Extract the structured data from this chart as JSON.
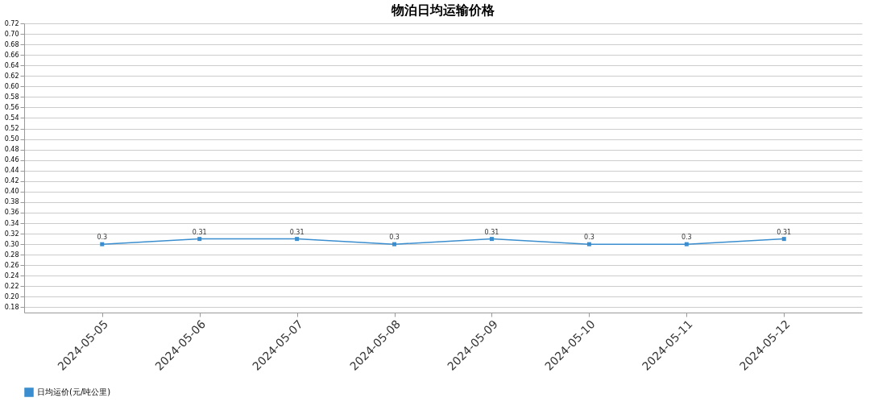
{
  "chart_data": {
    "type": "line",
    "title": "物泊日均运输价格",
    "categories": [
      "2024-05-05",
      "2024-05-06",
      "2024-05-07",
      "2024-05-08",
      "2024-05-09",
      "2024-05-10",
      "2024-05-11",
      "2024-05-12"
    ],
    "series": [
      {
        "name": "日均运价(元/吨公里)",
        "color": "#3a8ecf",
        "values": [
          0.3,
          0.31,
          0.31,
          0.3,
          0.31,
          0.3,
          0.3,
          0.31
        ]
      }
    ],
    "ylim": [
      0.17,
      0.72
    ],
    "yticks": [
      {
        "value": 0.18,
        "label": "0.18"
      },
      {
        "value": 0.2,
        "label": "0.20"
      },
      0.22,
      0.24,
      0.26,
      0.28,
      {
        "value": 0.3,
        "label": "0.30"
      },
      0.32,
      0.34,
      0.36,
      0.38,
      {
        "value": 0.4,
        "label": "0.40"
      },
      0.42,
      0.44,
      0.46,
      0.48,
      {
        "value": 0.5,
        "label": "0.50"
      },
      0.52,
      0.54,
      0.56,
      0.58,
      {
        "value": 0.6,
        "label": "0.60"
      },
      0.62,
      0.64,
      0.66,
      0.68,
      {
        "value": 0.7,
        "label": "0.70"
      },
      0.72
    ],
    "grid": "y",
    "legend": "bottom",
    "marker": "square",
    "line_style": "solid",
    "data_labels": true
  }
}
